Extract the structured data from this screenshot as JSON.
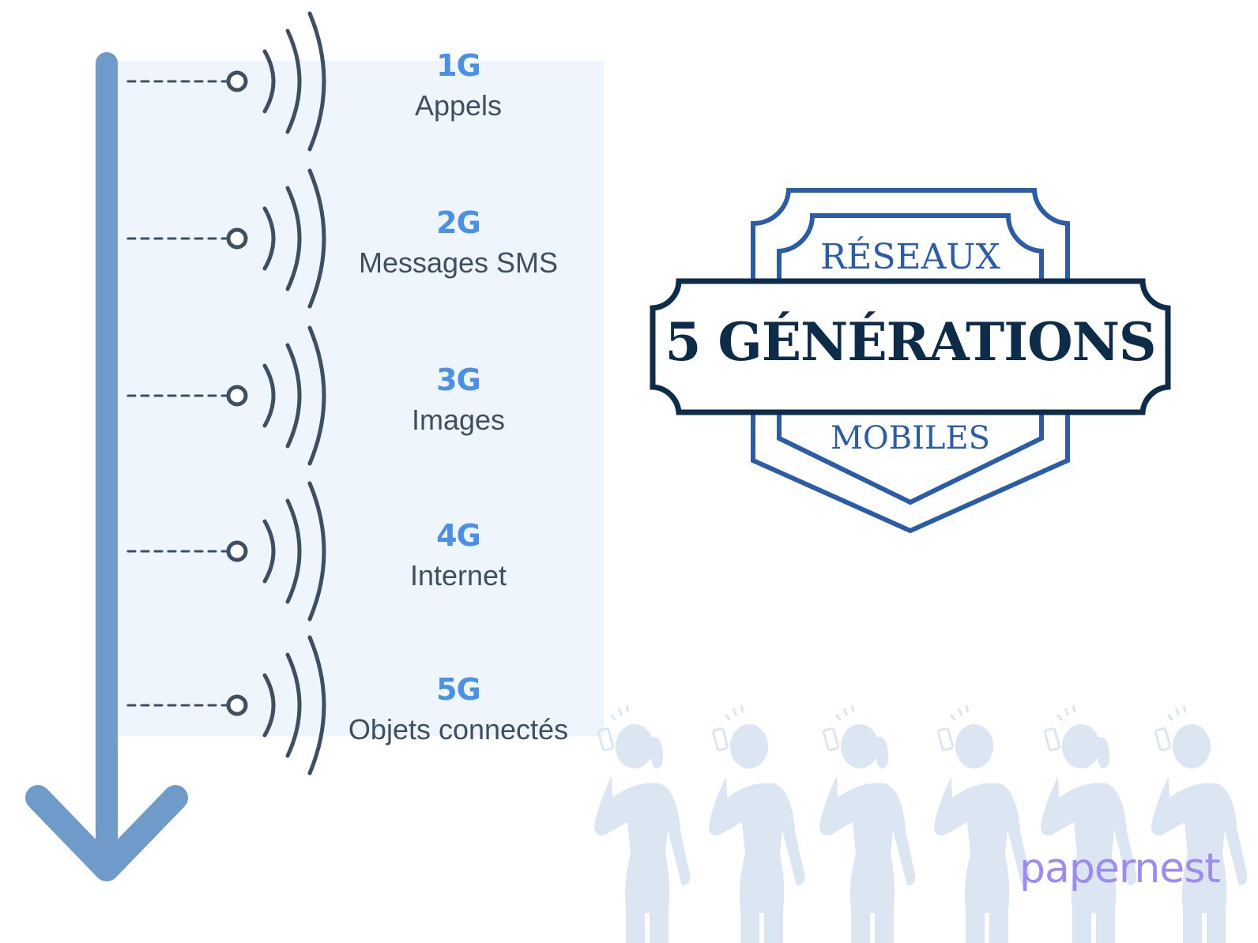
{
  "generations": [
    {
      "code": "1G",
      "label": "Appels"
    },
    {
      "code": "2G",
      "label": "Messages SMS"
    },
    {
      "code": "3G",
      "label": "Images"
    },
    {
      "code": "4G",
      "label": "Internet"
    },
    {
      "code": "5G",
      "label": "Objets connectés"
    }
  ],
  "badge": {
    "top": "RÉSEAUX",
    "main": "5 GÉNÉRATIONS",
    "bottom": "MOBILES"
  },
  "logo": "papernest",
  "colors": {
    "arrow": "#6f9bcb",
    "panel": "#eef5fd",
    "code": "#4a90e8",
    "text": "#3d4f63",
    "badge_blue": "#2a5ca8",
    "badge_dark": "#0d2c4a",
    "figures": "#dce6f2",
    "logo": "#9b8cf5"
  },
  "icons": [
    "signal-wave-icon",
    "down-arrow-icon",
    "person-on-phone-icon"
  ]
}
